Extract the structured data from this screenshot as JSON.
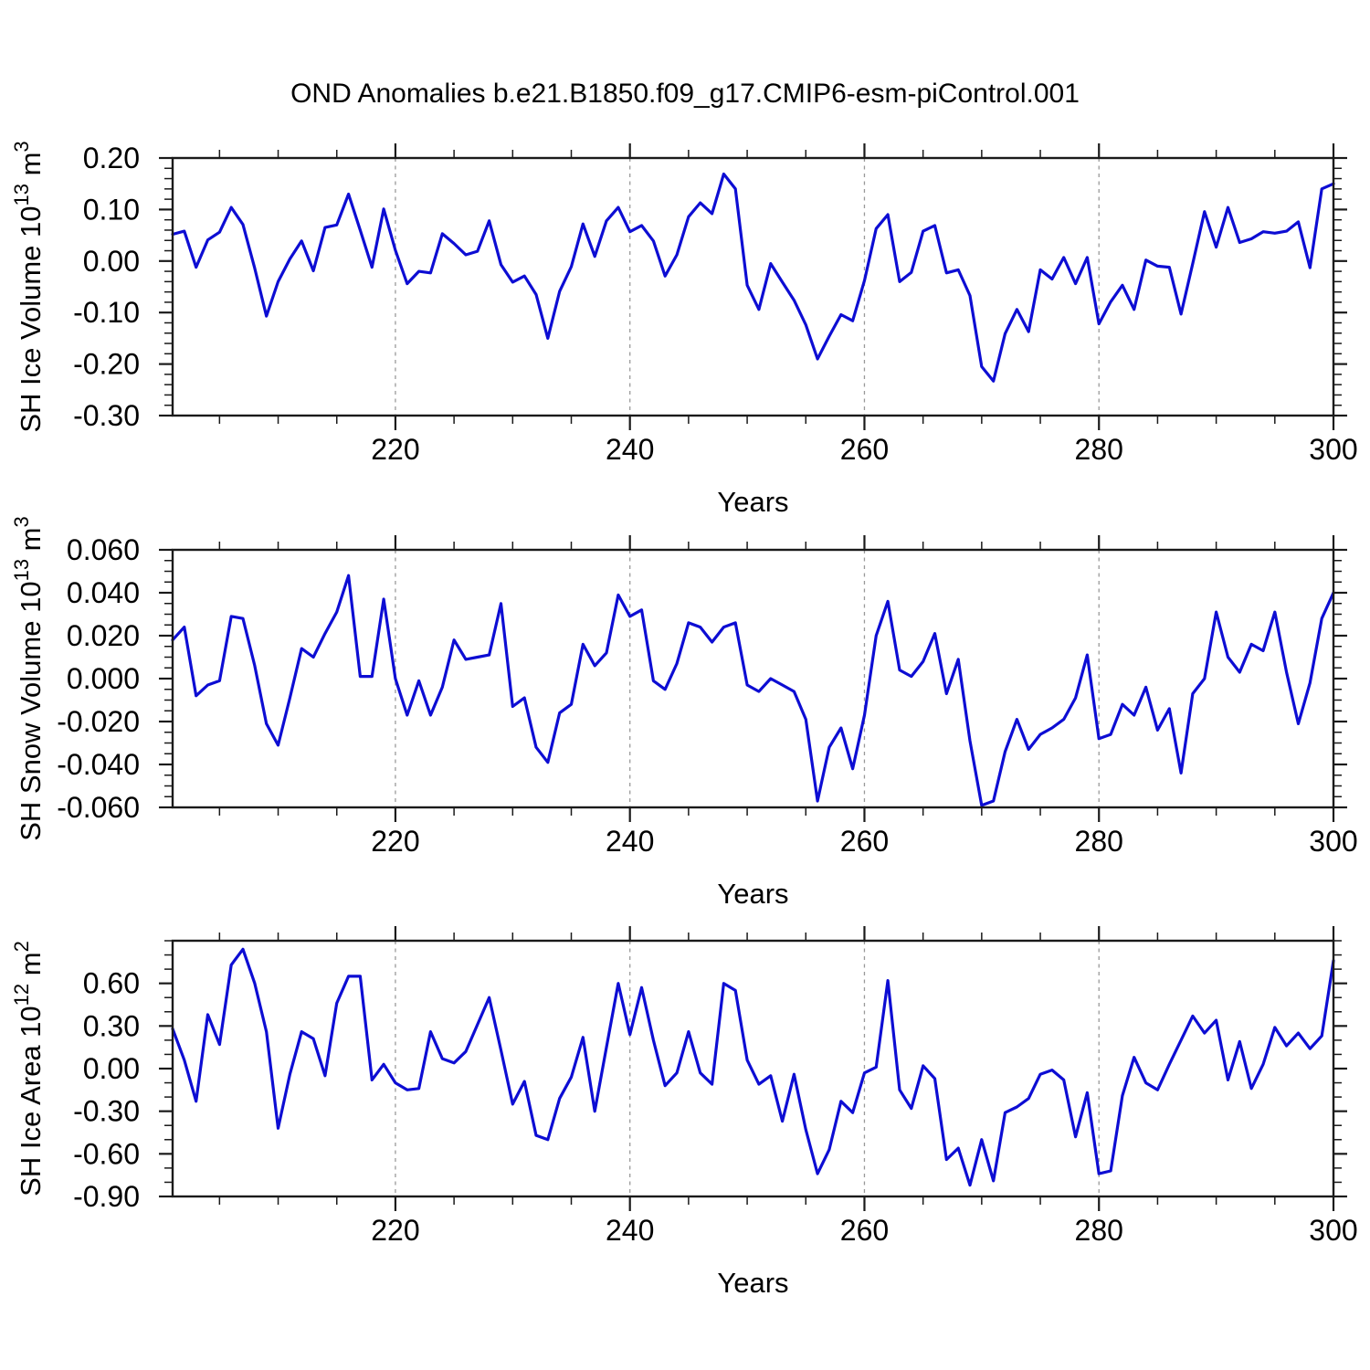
{
  "title": "OND Anomalies b.e21.B1850.f09_g17.CMIP6-esm-piControl.001",
  "colors": {
    "line": "#0d0dd3",
    "gridline": "#999999",
    "frame": "#1a1a1a",
    "text": "#000000",
    "background": "#ffffff"
  },
  "x_axis": {
    "label": "Years",
    "start": 201,
    "end": 300,
    "major_ticks": [
      220,
      240,
      260,
      280,
      300
    ],
    "minor_step": 5,
    "gridlines": [
      220,
      240,
      260,
      280
    ]
  },
  "chart_data": [
    {
      "type": "line",
      "name": "sh-ice-volume",
      "ylabel": "SH Ice Volume 10^13 m^3",
      "ylim": [
        -0.3,
        0.2
      ],
      "y_minor_step": 0.02,
      "yticks": [
        {
          "v": 0.2,
          "label": "0.20"
        },
        {
          "v": 0.1,
          "label": "0.10"
        },
        {
          "v": 0.0,
          "label": "0.00"
        },
        {
          "v": -0.1,
          "label": "-0.10"
        },
        {
          "v": -0.2,
          "label": "-0.20"
        },
        {
          "v": -0.3,
          "label": "-0.30"
        }
      ],
      "values": [
        0.052,
        0.058,
        -0.012,
        0.041,
        0.056,
        0.104,
        0.071,
        -0.014,
        -0.107,
        -0.04,
        0.004,
        0.039,
        -0.019,
        0.065,
        0.07,
        0.13,
        0.06,
        -0.012,
        0.101,
        0.021,
        -0.044,
        -0.02,
        -0.023,
        0.053,
        0.034,
        0.012,
        0.019,
        0.078,
        -0.007,
        -0.041,
        -0.029,
        -0.065,
        -0.15,
        -0.059,
        -0.011,
        0.072,
        0.009,
        0.078,
        0.104,
        0.057,
        0.069,
        0.039,
        -0.029,
        0.012,
        0.086,
        0.113,
        0.092,
        0.169,
        0.14,
        -0.047,
        -0.094,
        -0.005,
        -0.041,
        -0.076,
        -0.124,
        -0.19,
        -0.146,
        -0.104,
        -0.116,
        -0.038,
        0.063,
        0.09,
        -0.04,
        -0.022,
        0.058,
        0.069,
        -0.023,
        -0.017,
        -0.067,
        -0.205,
        -0.233,
        -0.141,
        -0.094,
        -0.137,
        -0.017,
        -0.035,
        0.007,
        -0.044,
        0.007,
        -0.122,
        -0.079,
        -0.047,
        -0.094,
        0.002,
        -0.01,
        -0.012,
        -0.103,
        -0.005,
        0.096,
        0.027,
        0.104,
        0.036,
        0.043,
        0.057,
        0.054,
        0.058,
        0.076,
        -0.013,
        0.14,
        0.15
      ]
    },
    {
      "type": "line",
      "name": "sh-snow-volume",
      "ylabel": "SH Snow Volume 10^13 m^3",
      "ylim": [
        -0.06,
        0.06
      ],
      "y_minor_step": 0.005,
      "yticks": [
        {
          "v": 0.06,
          "label": "0.060"
        },
        {
          "v": 0.04,
          "label": "0.040"
        },
        {
          "v": 0.02,
          "label": "0.020"
        },
        {
          "v": 0.0,
          "label": "0.000"
        },
        {
          "v": -0.02,
          "label": "-0.020"
        },
        {
          "v": -0.04,
          "label": "-0.040"
        },
        {
          "v": -0.06,
          "label": "-0.060"
        }
      ],
      "values": [
        0.018,
        0.024,
        -0.008,
        -0.003,
        -0.001,
        0.029,
        0.028,
        0.006,
        -0.021,
        -0.031,
        -0.009,
        0.014,
        0.01,
        0.021,
        0.031,
        0.048,
        0.001,
        0.001,
        0.037,
        0.0,
        -0.017,
        -0.001,
        -0.017,
        -0.004,
        0.018,
        0.009,
        0.01,
        0.011,
        0.035,
        -0.013,
        -0.009,
        -0.032,
        -0.039,
        -0.016,
        -0.012,
        0.016,
        0.006,
        0.012,
        0.039,
        0.029,
        0.032,
        -0.001,
        -0.005,
        0.007,
        0.026,
        0.024,
        0.017,
        0.024,
        0.026,
        -0.003,
        -0.006,
        0.0,
        -0.003,
        -0.006,
        -0.019,
        -0.057,
        -0.032,
        -0.023,
        -0.042,
        -0.017,
        0.02,
        0.036,
        0.004,
        0.001,
        0.008,
        0.021,
        -0.007,
        0.009,
        -0.029,
        -0.059,
        -0.057,
        -0.034,
        -0.019,
        -0.033,
        -0.026,
        -0.023,
        -0.019,
        -0.009,
        0.011,
        -0.028,
        -0.026,
        -0.012,
        -0.017,
        -0.004,
        -0.024,
        -0.014,
        -0.044,
        -0.007,
        0.0,
        0.031,
        0.01,
        0.003,
        0.016,
        0.013,
        0.031,
        0.003,
        -0.021,
        -0.002,
        0.028,
        0.04
      ]
    },
    {
      "type": "line",
      "name": "sh-ice-area",
      "ylabel": "SH Ice Area 10^12 m^2",
      "ylim": [
        -0.9,
        0.9
      ],
      "y_minor_step": 0.1,
      "yticks": [
        {
          "v": 0.6,
          "label": "0.60"
        },
        {
          "v": 0.3,
          "label": "0.30"
        },
        {
          "v": 0.0,
          "label": "0.00"
        },
        {
          "v": -0.3,
          "label": "-0.30"
        },
        {
          "v": -0.6,
          "label": "-0.60"
        },
        {
          "v": -0.9,
          "label": "-0.90"
        }
      ],
      "values": [
        0.28,
        0.06,
        -0.23,
        0.38,
        0.17,
        0.73,
        0.84,
        0.6,
        0.26,
        -0.42,
        -0.04,
        0.26,
        0.21,
        -0.05,
        0.46,
        0.65,
        0.65,
        -0.08,
        0.03,
        -0.1,
        -0.15,
        -0.14,
        0.26,
        0.07,
        0.04,
        0.12,
        0.31,
        0.5,
        0.13,
        -0.25,
        -0.09,
        -0.47,
        -0.5,
        -0.21,
        -0.06,
        0.22,
        -0.3,
        0.15,
        0.6,
        0.24,
        0.57,
        0.2,
        -0.12,
        -0.03,
        0.26,
        -0.03,
        -0.11,
        0.6,
        0.55,
        0.06,
        -0.11,
        -0.05,
        -0.37,
        -0.04,
        -0.43,
        -0.74,
        -0.57,
        -0.23,
        -0.31,
        -0.03,
        0.01,
        0.62,
        -0.15,
        -0.28,
        0.02,
        -0.07,
        -0.64,
        -0.56,
        -0.82,
        -0.5,
        -0.79,
        -0.31,
        -0.27,
        -0.21,
        -0.04,
        -0.01,
        -0.08,
        -0.48,
        -0.17,
        -0.74,
        -0.72,
        -0.19,
        0.08,
        -0.1,
        -0.15,
        0.03,
        0.2,
        0.37,
        0.25,
        0.34,
        -0.08,
        0.19,
        -0.14,
        0.03,
        0.29,
        0.16,
        0.25,
        0.14,
        0.23,
        0.76
      ]
    }
  ]
}
